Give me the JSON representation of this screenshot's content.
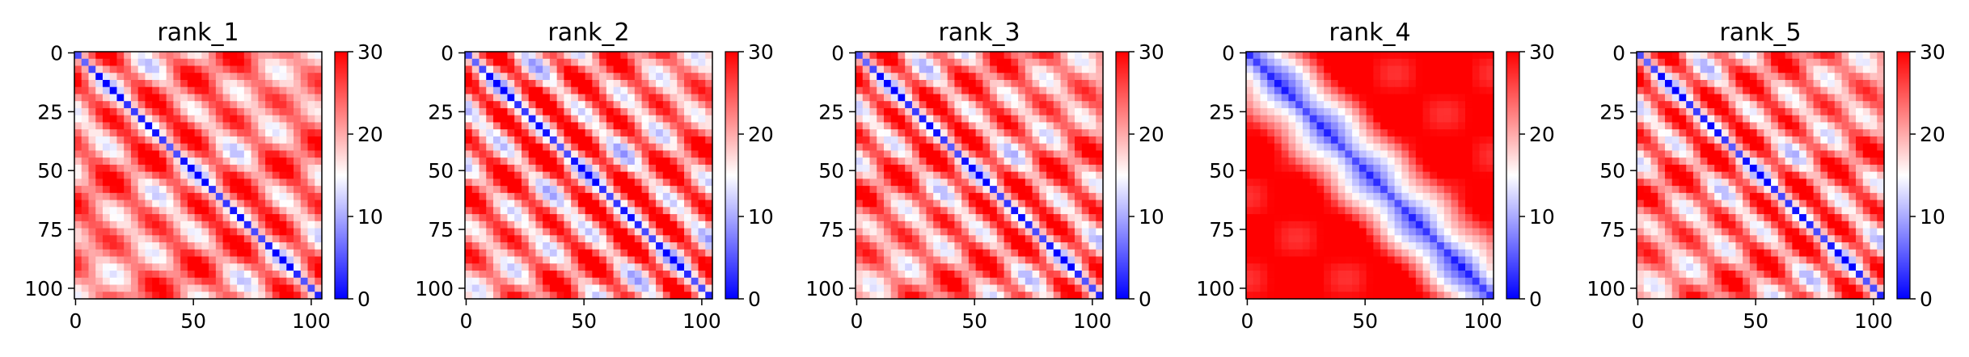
{
  "chart_data": [
    {
      "type": "heatmap",
      "title": "rank_1",
      "pattern": "wide_bands",
      "xticks": [
        "0",
        "50",
        "100"
      ],
      "yticks": [
        "0",
        "25",
        "50",
        "75",
        "100"
      ],
      "xlim": [
        0,
        105
      ],
      "ylim": [
        105,
        0
      ],
      "colorbar": {
        "min": 0,
        "max": 30,
        "ticks": [
          "0",
          "10",
          "20",
          "30"
        ],
        "colormap": "bwr"
      }
    },
    {
      "type": "heatmap",
      "title": "rank_2",
      "pattern": "strong_bands",
      "xticks": [
        "0",
        "50",
        "100"
      ],
      "yticks": [
        "0",
        "25",
        "50",
        "75",
        "100"
      ],
      "xlim": [
        0,
        105
      ],
      "ylim": [
        105,
        0
      ],
      "colorbar": {
        "min": 0,
        "max": 30,
        "ticks": [
          "0",
          "10",
          "20",
          "30"
        ],
        "colormap": "bwr"
      }
    },
    {
      "type": "heatmap",
      "title": "rank_3",
      "pattern": "bands",
      "xticks": [
        "0",
        "50",
        "100"
      ],
      "yticks": [
        "0",
        "25",
        "50",
        "75",
        "100"
      ],
      "xlim": [
        0,
        105
      ],
      "ylim": [
        105,
        0
      ],
      "colorbar": {
        "min": 0,
        "max": 30,
        "ticks": [
          "0",
          "10",
          "20",
          "30"
        ],
        "colormap": "bwr"
      }
    },
    {
      "type": "heatmap",
      "title": "rank_4",
      "pattern": "smooth",
      "xticks": [
        "0",
        "50",
        "100"
      ],
      "yticks": [
        "0",
        "25",
        "50",
        "75",
        "100"
      ],
      "xlim": [
        0,
        105
      ],
      "ylim": [
        105,
        0
      ],
      "colorbar": {
        "min": 0,
        "max": 30,
        "ticks": [
          "0",
          "10",
          "20",
          "30"
        ],
        "colormap": "bwr"
      }
    },
    {
      "type": "heatmap",
      "title": "rank_5",
      "pattern": "bands",
      "xticks": [
        "0",
        "50",
        "100"
      ],
      "yticks": [
        "0",
        "25",
        "50",
        "75",
        "100"
      ],
      "xlim": [
        0,
        105
      ],
      "ylim": [
        105,
        0
      ],
      "colorbar": {
        "min": 0,
        "max": 30,
        "ticks": [
          "0",
          "10",
          "20",
          "30"
        ],
        "colormap": "bwr"
      }
    }
  ]
}
